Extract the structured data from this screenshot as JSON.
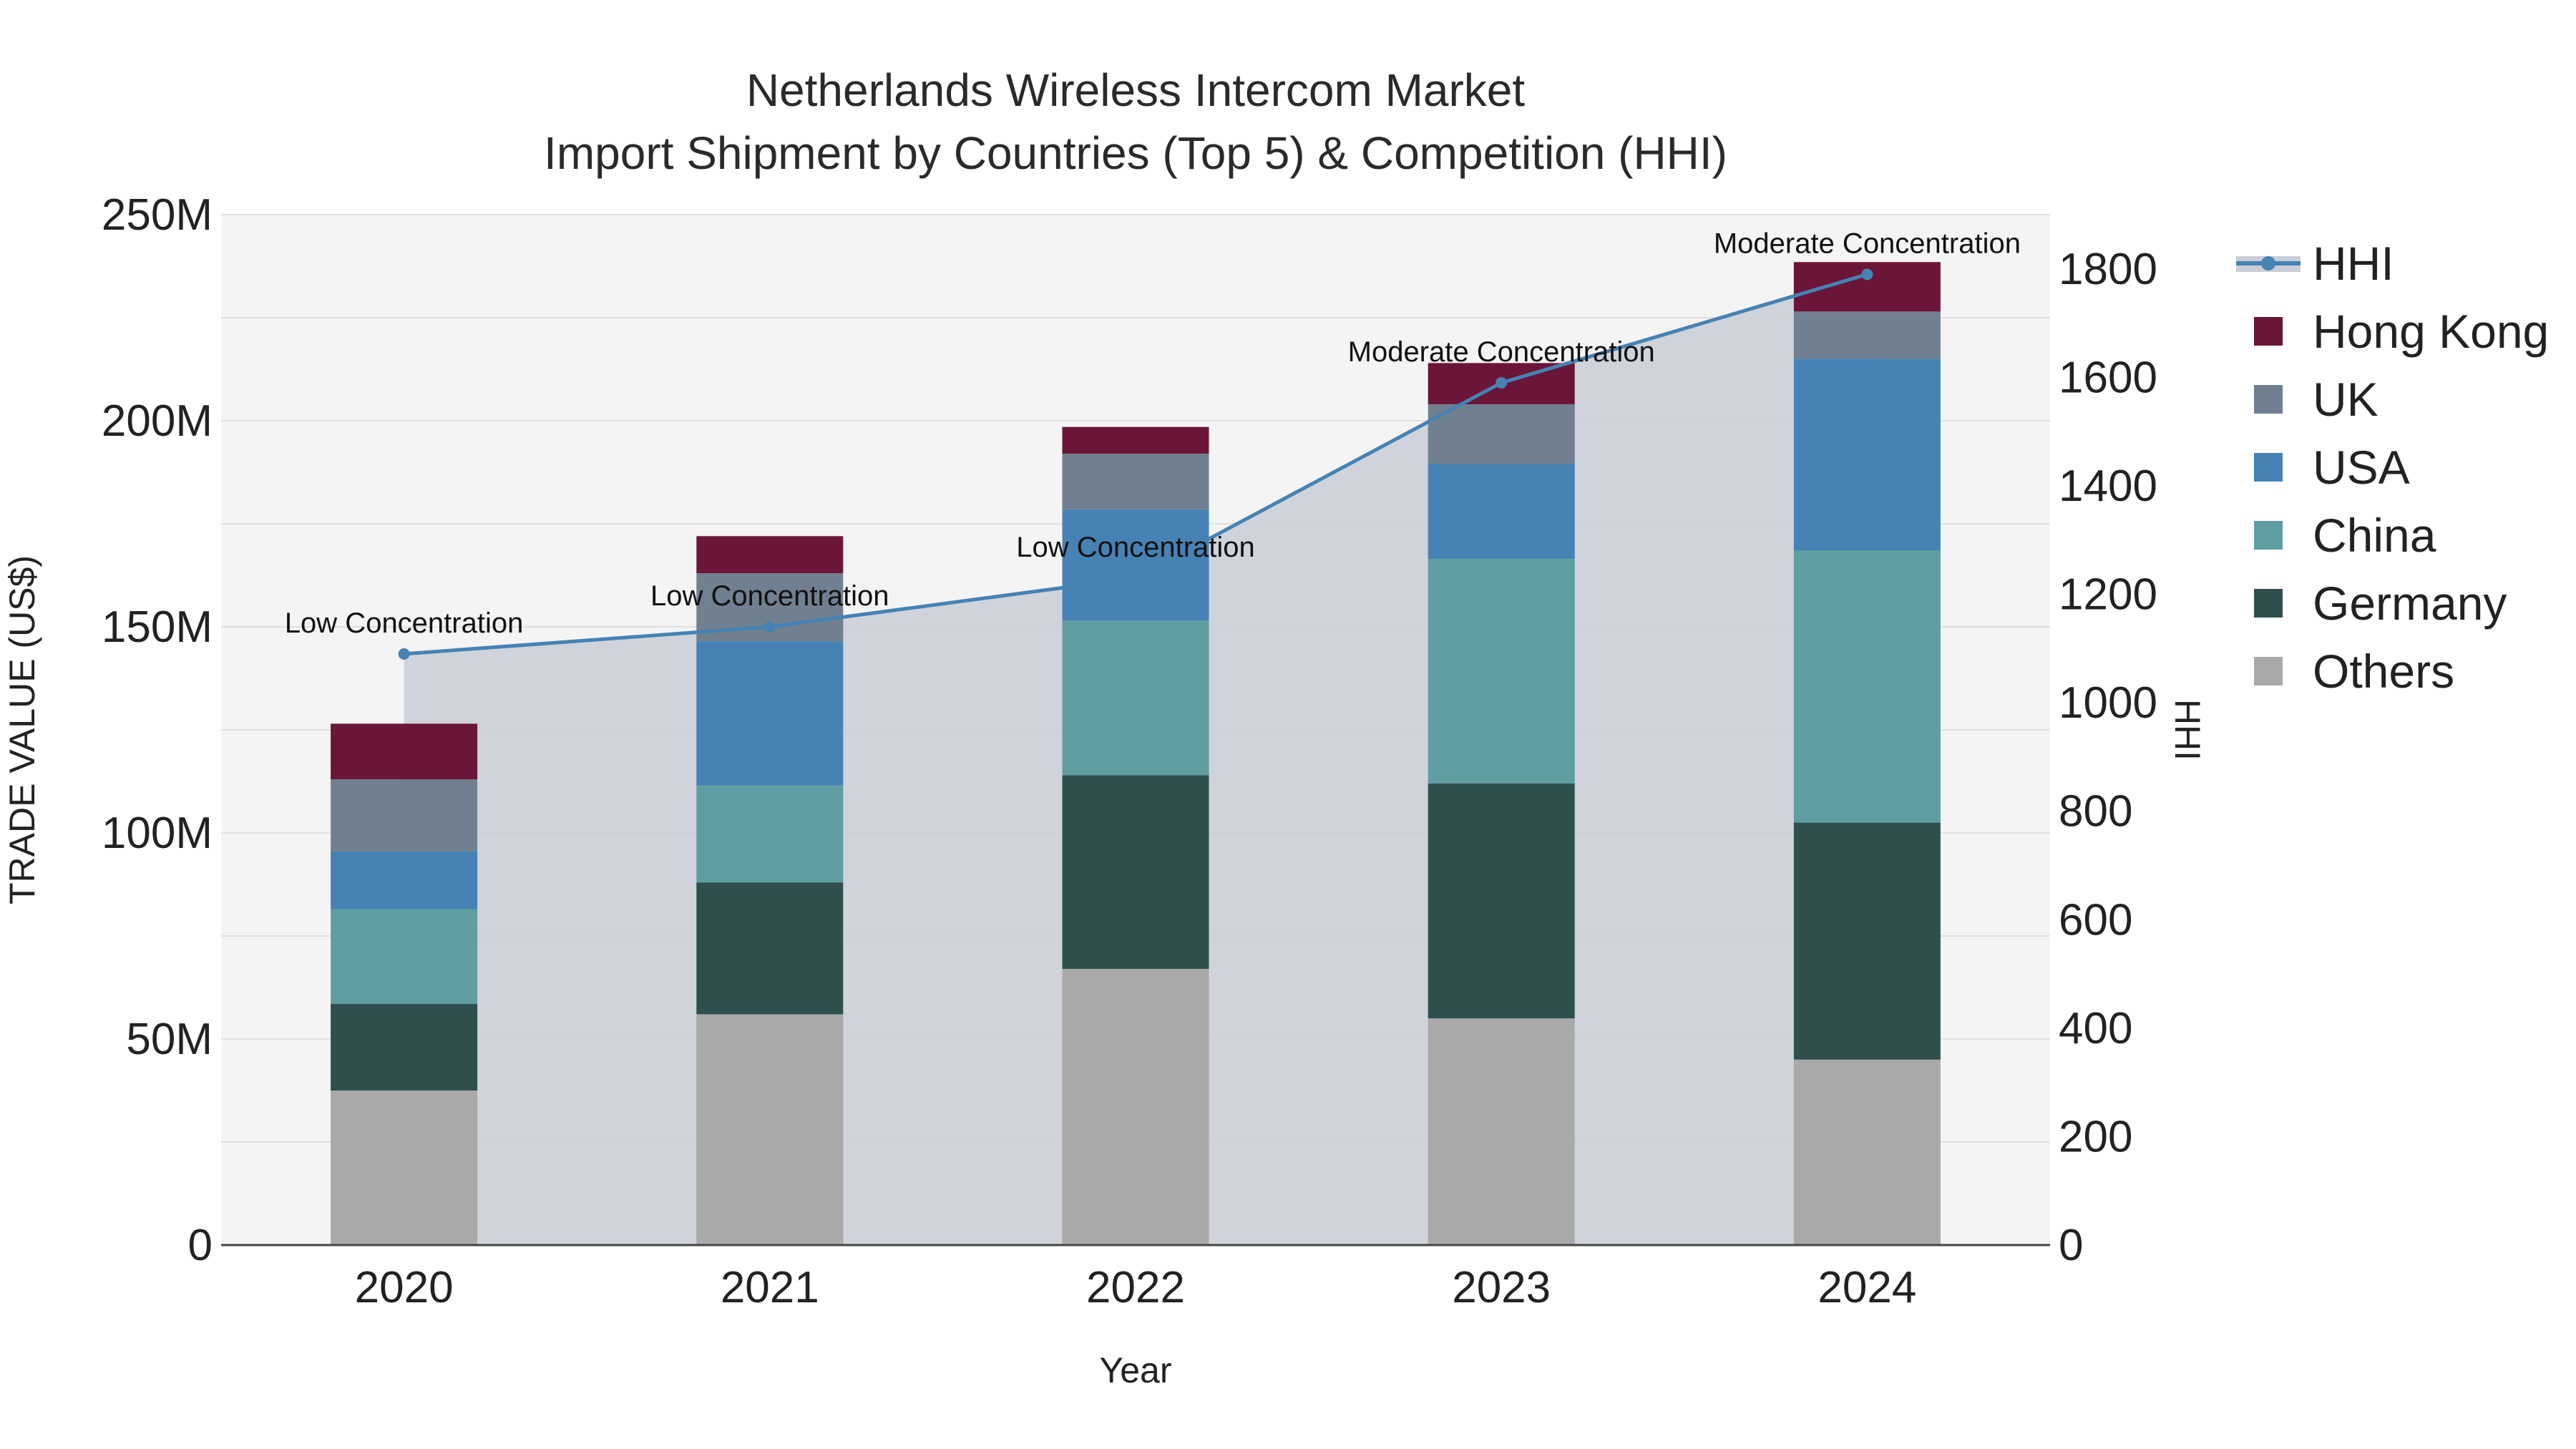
{
  "chart_data": {
    "type": "bar",
    "stacked": true,
    "title": "Netherlands Wireless Intercom Market",
    "subtitle": "Import Shipment by Countries (Top 5) & Competition (HHI)",
    "xlabel": "Year",
    "ylabel": "TRADE VALUE (US$)",
    "y2label": "HHI",
    "categories": [
      "2020",
      "2021",
      "2022",
      "2023",
      "2024"
    ],
    "ylim": [
      0,
      250000000
    ],
    "y_ticks": [
      {
        "value": 0,
        "label": "0"
      },
      {
        "value": 50000000,
        "label": "50M"
      },
      {
        "value": 100000000,
        "label": "100M"
      },
      {
        "value": 150000000,
        "label": "150M"
      },
      {
        "value": 200000000,
        "label": "200M"
      },
      {
        "value": 250000000,
        "label": "250M"
      }
    ],
    "y2lim": [
      0,
      1900
    ],
    "y2_ticks": [
      {
        "value": 0,
        "label": "0"
      },
      {
        "value": 200,
        "label": "200"
      },
      {
        "value": 400,
        "label": "400"
      },
      {
        "value": 600,
        "label": "600"
      },
      {
        "value": 800,
        "label": "800"
      },
      {
        "value": 1000,
        "label": "1000"
      },
      {
        "value": 1200,
        "label": "1200"
      },
      {
        "value": 1400,
        "label": "1400"
      },
      {
        "value": 1600,
        "label": "1600"
      },
      {
        "value": 1800,
        "label": "1800"
      }
    ],
    "series": [
      {
        "name": "Others",
        "color": "#a9a9a9",
        "values": [
          37500000,
          56000000,
          67000000,
          55000000,
          45000000
        ]
      },
      {
        "name": "Germany",
        "color": "#2f4f4f",
        "values": [
          21000000,
          32000000,
          47000000,
          57000000,
          57500000
        ]
      },
      {
        "name": "China",
        "color": "#5f9ea0",
        "values": [
          23000000,
          23500000,
          37500000,
          54500000,
          66000000
        ]
      },
      {
        "name": "USA",
        "color": "#4682b4",
        "values": [
          14000000,
          35000000,
          27000000,
          23000000,
          46500000
        ]
      },
      {
        "name": "UK",
        "color": "#708090",
        "values": [
          17500000,
          16500000,
          13500000,
          14500000,
          11500000
        ]
      },
      {
        "name": "Hong Kong",
        "color": "#6b1538",
        "values": [
          13500000,
          9000000,
          6500000,
          10000000,
          12000000
        ]
      }
    ],
    "hhi": {
      "name": "HHI",
      "line_color": "#4682b4",
      "fill_color": "#c9cdd6",
      "values": [
        1090,
        1140,
        1230,
        1590,
        1790
      ],
      "annotations": [
        "Low Concentration",
        "Low Concentration",
        "Low Concentration",
        "Moderate Concentration",
        "Moderate Concentration"
      ]
    },
    "legend": [
      "HHI",
      "Hong Kong",
      "UK",
      "USA",
      "China",
      "Germany",
      "Others"
    ],
    "legend_position": "right",
    "grid": true
  }
}
